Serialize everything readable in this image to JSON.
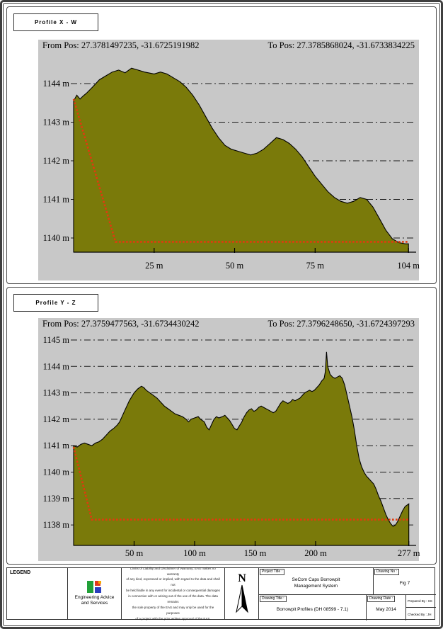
{
  "colors": {
    "plot_background": "#c8c8c8",
    "terrain_fill": "#7a7a0a",
    "terrain_outline": "#000000",
    "grid_line": "#1a1a1a",
    "profile_line": "#e23a0e",
    "border": "#3f3f3f",
    "logo_green": "#21a038",
    "logo_red": "#e03a1e",
    "logo_orange": "#f5a800",
    "logo_blue": "#2b3fbe"
  },
  "chart_data": [
    {
      "type": "area",
      "title": "Profile X - W",
      "from_pos": "From Pos: 27.3781497235, -31.6725191982",
      "to_pos": "To Pos: 27.3785868024, -31.6733834225",
      "xlim": [
        0,
        104
      ],
      "ylim": [
        1139.6,
        1145.1
      ],
      "grid": true,
      "x_ticks": [
        {
          "value": 25,
          "label": "25 m"
        },
        {
          "value": 50,
          "label": "50 m"
        },
        {
          "value": 75,
          "label": "75 m"
        },
        {
          "value": 104,
          "label": "104 m"
        }
      ],
      "y_ticks": [
        {
          "value": 1140,
          "label": "1140 m"
        },
        {
          "value": 1141,
          "label": "1141 m"
        },
        {
          "value": 1142,
          "label": "1142 m"
        },
        {
          "value": 1143,
          "label": "1143 m"
        },
        {
          "value": 1144,
          "label": "1144 m"
        }
      ],
      "terrain": {
        "x": [
          0,
          1,
          2,
          3,
          4,
          6,
          8,
          10,
          12,
          14,
          16,
          18,
          20,
          22,
          25,
          27,
          29,
          31,
          33,
          35,
          37,
          39,
          41,
          43,
          45,
          47,
          49,
          51,
          53,
          55,
          57,
          59,
          61,
          63,
          65,
          67,
          69,
          71,
          73,
          75,
          77,
          79,
          81,
          83,
          85,
          87,
          89,
          91,
          93,
          95,
          97,
          99,
          101,
          103,
          104
        ],
        "y": [
          1143.55,
          1143.7,
          1143.6,
          1143.68,
          1143.75,
          1143.92,
          1144.1,
          1144.2,
          1144.3,
          1144.35,
          1144.28,
          1144.4,
          1144.35,
          1144.3,
          1144.25,
          1144.3,
          1144.25,
          1144.15,
          1144.05,
          1143.9,
          1143.7,
          1143.45,
          1143.15,
          1142.85,
          1142.6,
          1142.4,
          1142.3,
          1142.25,
          1142.2,
          1142.15,
          1142.2,
          1142.3,
          1142.45,
          1142.6,
          1142.55,
          1142.45,
          1142.3,
          1142.1,
          1141.85,
          1141.6,
          1141.4,
          1141.2,
          1141.05,
          1140.95,
          1140.9,
          1140.95,
          1141.05,
          1141.0,
          1140.8,
          1140.5,
          1140.2,
          1139.98,
          1139.88,
          1139.85,
          1139.85
        ]
      },
      "red_line": {
        "x": [
          0,
          13,
          104
        ],
        "y": [
          1143.6,
          1139.9,
          1139.9
        ]
      }
    },
    {
      "type": "area",
      "title": "Profile Y - Z",
      "from_pos": "From Pos: 27.3759477563, -31.6734430242",
      "to_pos": "To Pos: 27.3796248650, -31.6724397293",
      "xlim": [
        0,
        277
      ],
      "ylim": [
        1137.2,
        1145.8
      ],
      "grid": true,
      "x_ticks": [
        {
          "value": 50,
          "label": "50 m"
        },
        {
          "value": 100,
          "label": "100 m"
        },
        {
          "value": 150,
          "label": "150 m"
        },
        {
          "value": 200,
          "label": "200 m"
        },
        {
          "value": 277,
          "label": "277 m"
        }
      ],
      "y_ticks": [
        {
          "value": 1138,
          "label": "1138 m"
        },
        {
          "value": 1139,
          "label": "1139 m"
        },
        {
          "value": 1140,
          "label": "1140 m"
        },
        {
          "value": 1141,
          "label": "1141 m"
        },
        {
          "value": 1142,
          "label": "1142 m"
        },
        {
          "value": 1143,
          "label": "1143 m"
        },
        {
          "value": 1144,
          "label": "1144 m"
        },
        {
          "value": 1145,
          "label": "1145 m"
        }
      ],
      "terrain": {
        "x": [
          0,
          3,
          6,
          9,
          12,
          15,
          18,
          21,
          24,
          27,
          30,
          33,
          36,
          38,
          40,
          42,
          44,
          46,
          48,
          50,
          53,
          56,
          58,
          60,
          63,
          66,
          69,
          72,
          75,
          78,
          81,
          84,
          87,
          90,
          93,
          95,
          97,
          100,
          103,
          105,
          108,
          110,
          112,
          114,
          116,
          118,
          120,
          123,
          125,
          127,
          129,
          131,
          133,
          135,
          137,
          139,
          141,
          143,
          145,
          147,
          149,
          151,
          153,
          155,
          157,
          159,
          161,
          163,
          165,
          167,
          169,
          171,
          173,
          175,
          177,
          179,
          181,
          183,
          185,
          187,
          189,
          191,
          193,
          195,
          197,
          199,
          201,
          203,
          205,
          207,
          208,
          209,
          210,
          212,
          214,
          216,
          218,
          220,
          222,
          224,
          226,
          228,
          230,
          232,
          234,
          236,
          238,
          240,
          242,
          244,
          246,
          248,
          250,
          252,
          254,
          256,
          258,
          260,
          262,
          264,
          266,
          268,
          270,
          272,
          274,
          277
        ],
        "y": [
          1141.0,
          1140.95,
          1141.05,
          1141.1,
          1141.05,
          1141.0,
          1141.1,
          1141.15,
          1141.25,
          1141.4,
          1141.55,
          1141.65,
          1141.78,
          1141.9,
          1142.1,
          1142.3,
          1142.5,
          1142.7,
          1142.85,
          1143.0,
          1143.15,
          1143.25,
          1143.2,
          1143.1,
          1143.0,
          1142.9,
          1142.8,
          1142.65,
          1142.5,
          1142.4,
          1142.3,
          1142.2,
          1142.15,
          1142.1,
          1142.0,
          1141.9,
          1142.0,
          1142.05,
          1142.1,
          1142.0,
          1141.9,
          1141.7,
          1141.6,
          1141.8,
          1142.0,
          1142.1,
          1142.05,
          1142.1,
          1142.15,
          1142.05,
          1141.95,
          1141.8,
          1141.65,
          1141.6,
          1141.75,
          1141.9,
          1142.1,
          1142.25,
          1142.35,
          1142.4,
          1142.3,
          1142.35,
          1142.45,
          1142.5,
          1142.45,
          1142.4,
          1142.35,
          1142.3,
          1142.25,
          1142.3,
          1142.45,
          1142.6,
          1142.7,
          1142.65,
          1142.6,
          1142.65,
          1142.75,
          1142.7,
          1142.75,
          1142.8,
          1142.9,
          1143.0,
          1143.05,
          1143.1,
          1143.05,
          1143.1,
          1143.2,
          1143.3,
          1143.45,
          1143.55,
          1143.8,
          1144.55,
          1144.0,
          1143.7,
          1143.6,
          1143.55,
          1143.6,
          1143.65,
          1143.55,
          1143.3,
          1142.9,
          1142.5,
          1142.1,
          1141.6,
          1141.0,
          1140.5,
          1140.2,
          1140.0,
          1139.85,
          1139.75,
          1139.65,
          1139.55,
          1139.35,
          1139.1,
          1138.9,
          1138.65,
          1138.4,
          1138.2,
          1138.05,
          1137.95,
          1138.0,
          1138.15,
          1138.35,
          1138.55,
          1138.7,
          1138.8
        ]
      },
      "red_line": {
        "x": [
          0,
          15,
          277
        ],
        "y": [
          1140.95,
          1138.2,
          1138.2
        ]
      }
    }
  ],
  "title_block": {
    "legend_label": "LEGEND",
    "company_name": "Engineering Advice\nand Services",
    "disclaimer": "Limits of Liability and Disclaimer of Warranty: EAS makes no warranty\nof any kind, expressed or implied, with regard to the data and shall not\nbe held liable in any event for incidental or consequential damages\nin connection with or arising out of the use of the data. The data remains\nthe sole property of the EAS and may only be used for the purposes\nof a project with the prior written approval of the EAS.",
    "north_label": "N",
    "project_title_label": "Project Title :",
    "project_title": "SeCom Caps Borrowpit\nManagement System",
    "drawing_no_label": "Drawing No :",
    "drawing_no": "Fig 7",
    "drawing_title_label": "Drawing Title :",
    "drawing_title": "Borrowpit Profiles (DH 08599 - 7.1)",
    "drawing_date_label": "Drawing Date :",
    "drawing_date": "May 2014",
    "prepared_by": "Prepared By :  SS",
    "checked_by": "Checked By :  JH"
  }
}
